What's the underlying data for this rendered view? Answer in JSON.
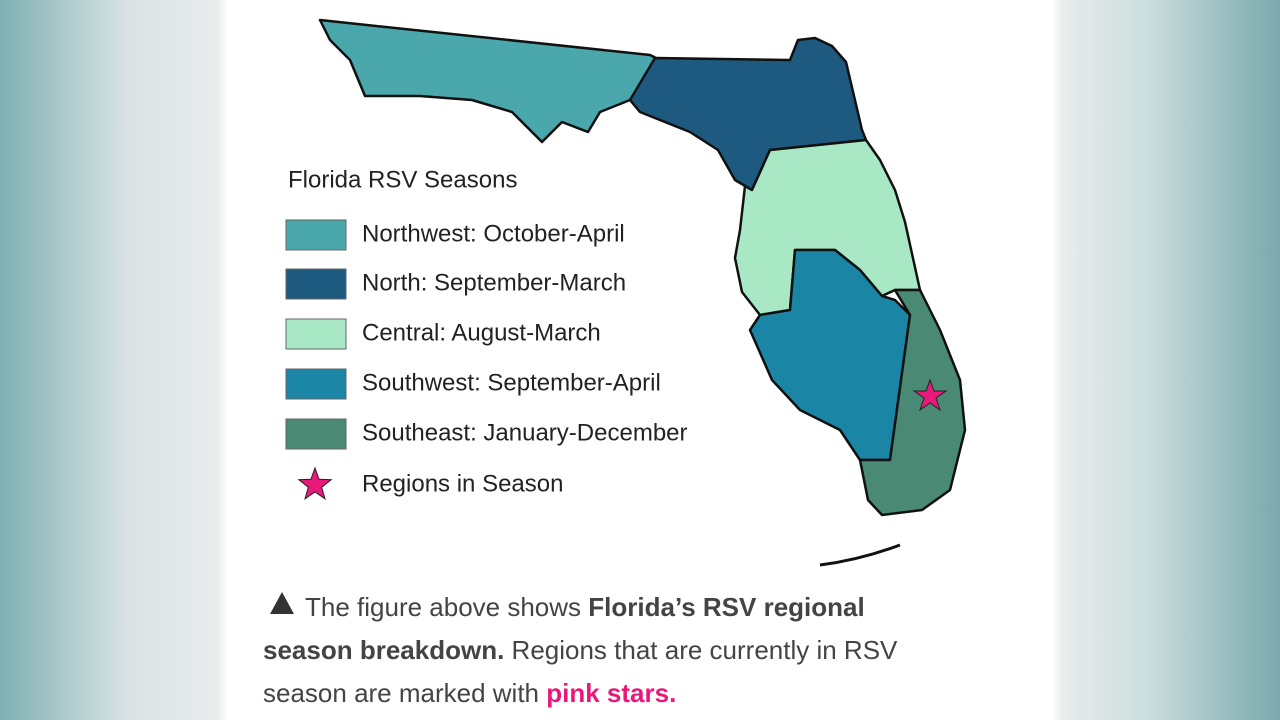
{
  "legend": {
    "title": "Florida RSV Seasons",
    "items": [
      {
        "label": "Northwest: October-April",
        "color": "#4aa8ad"
      },
      {
        "label": "North: September-March",
        "color": "#1e5a80"
      },
      {
        "label": "Central: August-March",
        "color": "#a8e8c4"
      },
      {
        "label": "Southwest: September-April",
        "color": "#1a85a5"
      },
      {
        "label": "Southeast: January-December",
        "color": "#4a8a74"
      },
      {
        "label": "Regions in Season",
        "color": "#e8197b"
      }
    ]
  },
  "caption": {
    "lines": [
      [
        {
          "text": "The figure above shows "
        },
        {
          "text": "Florida’s RSV regional",
          "bold": true
        }
      ],
      [
        {
          "text": "season breakdown.",
          "bold": true
        },
        {
          "text": " Regions that are currently in RSV"
        }
      ],
      [
        {
          "text": "season are marked with "
        },
        {
          "text": "pink stars.",
          "bold": true,
          "pink": true
        }
      ]
    ]
  }
}
